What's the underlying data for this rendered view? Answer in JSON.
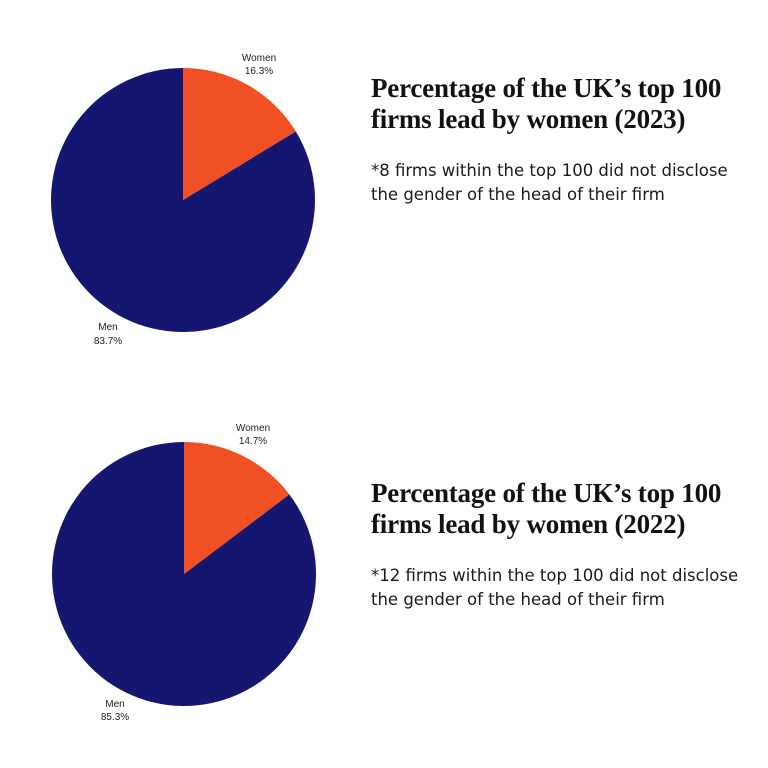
{
  "colors": {
    "women": "#f05023",
    "men": "#141670",
    "background": "#ffffff"
  },
  "chart_data": [
    {
      "type": "pie",
      "title": "Percentage of the UK’s top 100 firms lead by women (2023)",
      "note": "*8 firms within the top 100 did not disclose the gender of the head of their firm",
      "slices": [
        {
          "label": "Women",
          "value": 16.3,
          "display": "16.3%"
        },
        {
          "label": "Men",
          "value": 83.7,
          "display": "83.7%"
        }
      ]
    },
    {
      "type": "pie",
      "title": "Percentage of the UK’s top 100 firms lead by women (2022)",
      "note": "*12 firms within the top 100 did not disclose the gender of the head of their firm",
      "slices": [
        {
          "label": "Women",
          "value": 14.7,
          "display": "14.7%"
        },
        {
          "label": "Men",
          "value": 85.3,
          "display": "85.3%"
        }
      ]
    }
  ]
}
